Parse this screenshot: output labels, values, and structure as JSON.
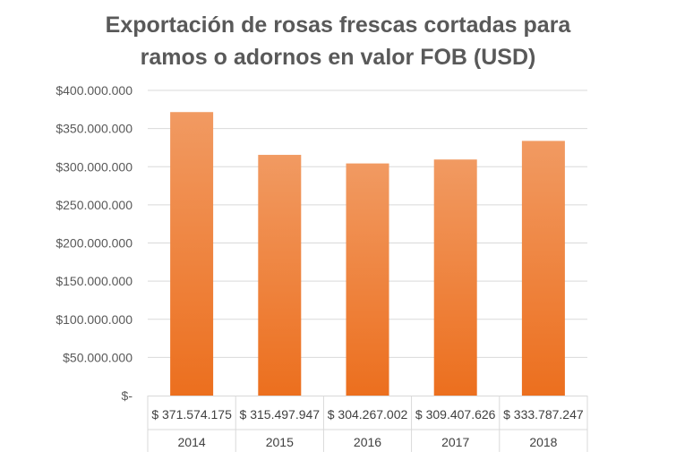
{
  "chart_data": {
    "type": "bar",
    "title_line1": "Exportación de rosas frescas cortadas para",
    "title_line2": "ramos o adornos en valor FOB (USD)",
    "categories": [
      "2014",
      "2015",
      "2016",
      "2017",
      "2018"
    ],
    "values": [
      371574175,
      315497947,
      304267002,
      309407626,
      333787247
    ],
    "value_labels": [
      "$ 371.574.175",
      "$ 315.497.947",
      "$ 304.267.002",
      "$ 309.407.626",
      "$ 333.787.247"
    ],
    "ylim": [
      0,
      400000000
    ],
    "y_ticks": [
      0,
      50000000,
      100000000,
      150000000,
      200000000,
      250000000,
      300000000,
      350000000,
      400000000
    ],
    "y_tick_labels": [
      "$-",
      "$50.000.000",
      "$100.000.000",
      "$150.000.000",
      "$200.000.000",
      "$250.000.000",
      "$300.000.000",
      "$350.000.000",
      "$400.000.000"
    ],
    "grid": true,
    "legend": "none",
    "data_table": true,
    "colors": {
      "bar_top": "#f19a62",
      "bar_bottom": "#ec6f1e",
      "grid": "#d9d9d9",
      "text": "#595959"
    }
  }
}
